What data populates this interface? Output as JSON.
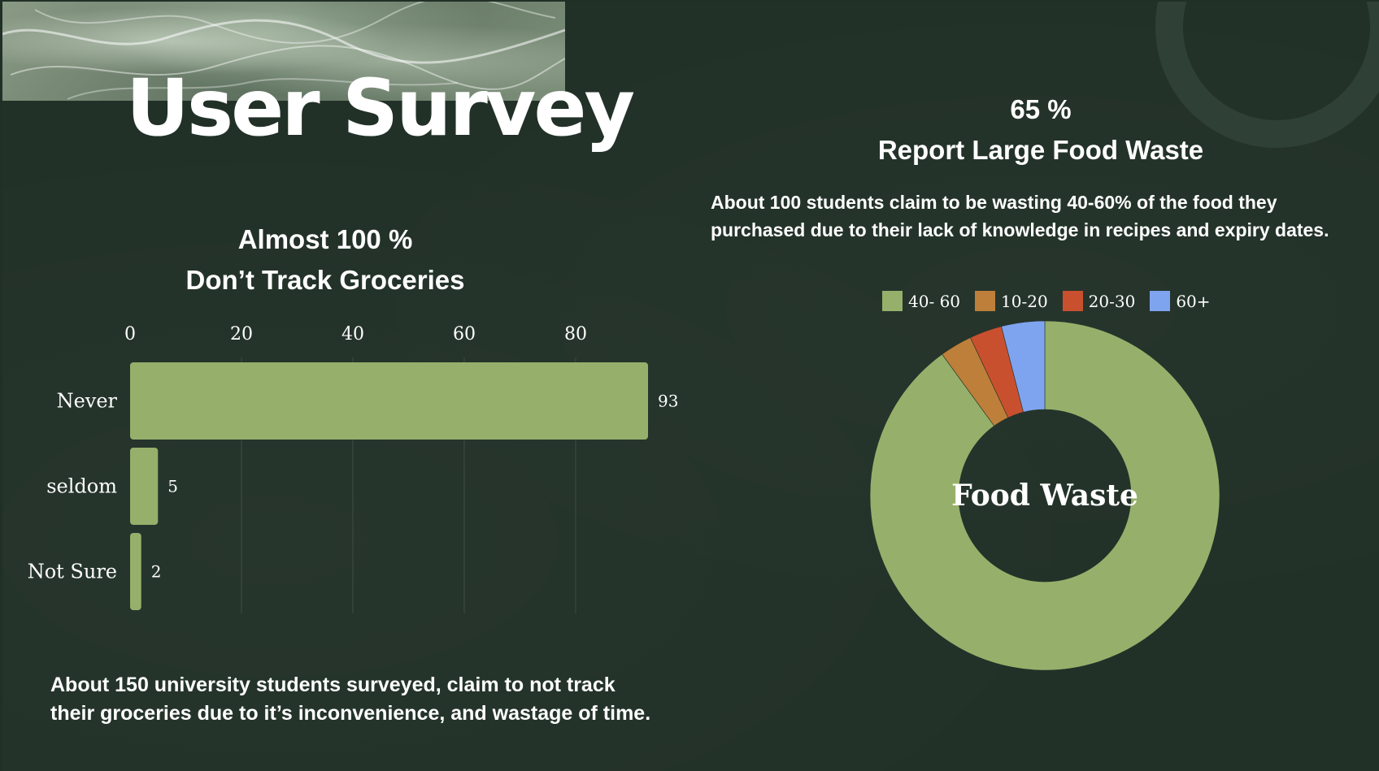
{
  "slide": {
    "title": "User Survey",
    "bar_heading": [
      "Almost 100 %",
      "Don’t Track Groceries"
    ],
    "bar_caption": [
      "About 150 university students surveyed, claim to not track",
      "their groceries due to it’s inconvenience, and wastage of time."
    ],
    "pie_heading": [
      "65 %",
      "Report Large Food Waste"
    ],
    "pie_caption": [
      "About 100 students claim to be wasting 40-60% of the food they",
      "purchased due to their lack of knowledge in recipes and expiry dates."
    ]
  },
  "chart_data": [
    {
      "type": "bar",
      "orientation": "horizontal",
      "categories": [
        "Never",
        "seldom",
        "Not Sure"
      ],
      "values": [
        93,
        5,
        2
      ],
      "data_labels": [
        "93",
        "5",
        "2"
      ],
      "xticks": [
        "0",
        "20",
        "40",
        "60",
        "80"
      ],
      "xlim": [
        0,
        93
      ],
      "xaxis_position": "top",
      "grid": true,
      "color": "#96b06b"
    },
    {
      "type": "pie",
      "donut": true,
      "center_label": "Food Waste",
      "legend_position": "top",
      "slices": [
        {
          "label": "40- 60",
          "value": 90,
          "color": "#96b06b"
        },
        {
          "label": "10-20",
          "value": 3,
          "color": "#bd7f3a"
        },
        {
          "label": "20-30",
          "value": 3,
          "color": "#c9502f"
        },
        {
          "label": "60+",
          "value": 4,
          "color": "#7fa4ef"
        }
      ]
    }
  ]
}
